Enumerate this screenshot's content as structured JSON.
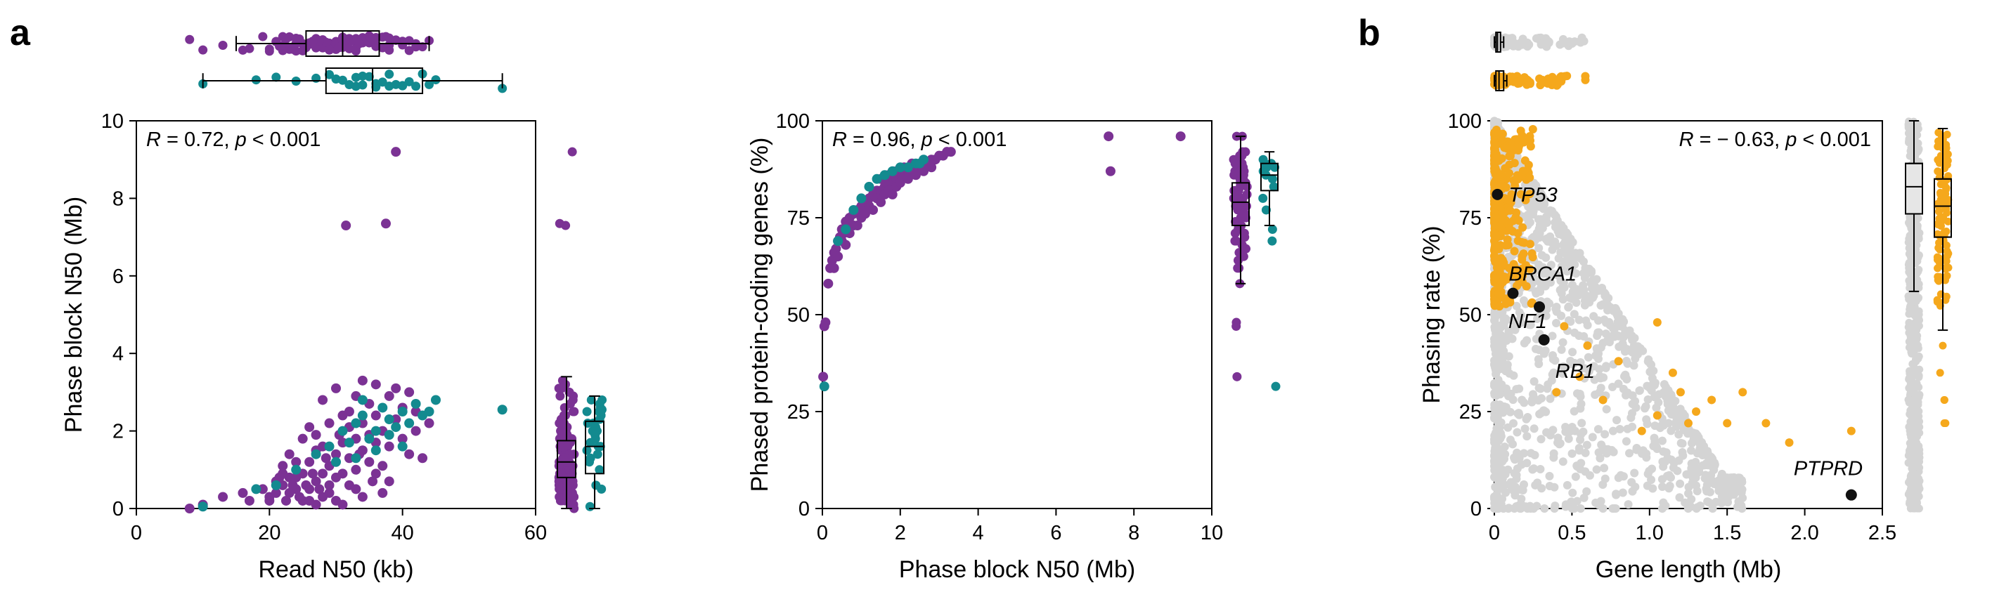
{
  "colors": {
    "purple": "#7b3294",
    "teal": "#138a8f",
    "orange": "#f5a81c",
    "gray": "#d4d4d4",
    "black": "#111111"
  },
  "panel_labels": [
    "a",
    "b"
  ],
  "chart_data": [
    {
      "id": "scatter1",
      "type": "scatter",
      "xlabel": "Read N50 (kb)",
      "ylabel": "Phase block N50 (Mb)",
      "xlim": [
        0,
        60
      ],
      "ylim": [
        0,
        10
      ],
      "xticks": [
        0,
        20,
        40,
        60
      ],
      "yticks": [
        0,
        2,
        4,
        6,
        8,
        10
      ],
      "annotation": {
        "r_label": "R",
        "r_value": " = 0.72, ",
        "p_label": "p",
        "p_value": " < 0.001"
      },
      "series": [
        {
          "color": "purple",
          "points": [
            [
              8,
              0
            ],
            [
              10,
              0.1
            ],
            [
              13,
              0.3
            ],
            [
              16,
              0.4
            ],
            [
              19,
              0.5
            ],
            [
              20,
              0.3
            ],
            [
              21,
              0.7
            ],
            [
              22,
              0.6
            ],
            [
              23,
              0.4
            ],
            [
              24,
              0.8
            ],
            [
              25,
              0.9
            ],
            [
              25,
              0.2
            ],
            [
              26,
              0.5
            ],
            [
              26,
              1.2
            ],
            [
              27,
              0.7
            ],
            [
              27,
              1.5
            ],
            [
              28,
              0.9
            ],
            [
              28,
              1.6
            ],
            [
              29,
              1.1
            ],
            [
              29,
              0.4
            ],
            [
              30,
              1.4
            ],
            [
              30,
              0.8
            ],
            [
              31,
              1.7
            ],
            [
              31,
              0.9
            ],
            [
              32,
              1.3
            ],
            [
              32,
              2.1
            ],
            [
              33,
              1.8
            ],
            [
              33,
              1.0
            ],
            [
              34,
              2.2
            ],
            [
              34,
              1.5
            ],
            [
              35,
              1.9
            ],
            [
              35,
              2.7
            ],
            [
              36,
              1.7
            ],
            [
              36,
              2.4
            ],
            [
              37,
              2.0
            ],
            [
              37,
              1.1
            ],
            [
              38,
              2.9
            ],
            [
              38,
              1.6
            ],
            [
              39,
              2.3
            ],
            [
              40,
              1.8
            ],
            [
              40,
              2.6
            ],
            [
              41,
              1.4
            ],
            [
              42,
              2.0
            ],
            [
              43,
              1.3
            ],
            [
              44,
              2.2
            ],
            [
              24,
              1.2
            ],
            [
              23,
              0.8
            ],
            [
              22,
              1.1
            ],
            [
              21,
              0.4
            ],
            [
              20,
              0.2
            ],
            [
              26,
              0.2
            ],
            [
              27,
              0.1
            ],
            [
              28,
              0.3
            ],
            [
              29,
              0.6
            ],
            [
              30,
              0.2
            ],
            [
              31,
              0.1
            ],
            [
              32,
              0.6
            ],
            [
              33,
              0.5
            ],
            [
              34,
              0.3
            ],
            [
              35,
              1.2
            ],
            [
              36,
              0.9
            ],
            [
              37,
              0.4
            ],
            [
              38,
              0.7
            ],
            [
              26,
              2.1
            ],
            [
              28,
              2.8
            ],
            [
              30,
              3.1
            ],
            [
              32,
              2.5
            ],
            [
              34,
              3.3
            ],
            [
              36,
              3.2
            ],
            [
              33,
              2.9
            ],
            [
              25,
              1.8
            ],
            [
              24,
              0.5
            ],
            [
              23,
              1.4
            ],
            [
              22,
              0.9
            ],
            [
              31,
              2.4
            ],
            [
              29,
              2.2
            ],
            [
              27,
              1.9
            ],
            [
              39,
              3.1
            ],
            [
              41,
              3.0
            ],
            [
              42,
              2.5
            ],
            [
              31.5,
              7.3
            ],
            [
              37.5,
              7.35
            ],
            [
              39,
              9.2
            ],
            [
              17,
              0.2
            ],
            [
              25.5,
              0.6
            ],
            [
              35.5,
              0.7
            ],
            [
              33.5,
              1.4
            ],
            [
              30.5,
              1.9
            ],
            [
              28.5,
              1.3
            ],
            [
              27.5,
              0.5
            ],
            [
              26.5,
              0.9
            ],
            [
              24.5,
              0.3
            ],
            [
              23.5,
              0.6
            ],
            [
              22.5,
              0.2
            ],
            [
              21.5,
              0.8
            ]
          ]
        },
        {
          "color": "teal",
          "points": [
            [
              10,
              0.05
            ],
            [
              18,
              0.5
            ],
            [
              21,
              0.6
            ],
            [
              24,
              1.0
            ],
            [
              27,
              1.4
            ],
            [
              29,
              1.6
            ],
            [
              30,
              1.2
            ],
            [
              31,
              2.0
            ],
            [
              32,
              1.7
            ],
            [
              33,
              2.2
            ],
            [
              34,
              2.4
            ],
            [
              35,
              1.8
            ],
            [
              36,
              2.0
            ],
            [
              37,
              2.6
            ],
            [
              38,
              2.3
            ],
            [
              39,
              2.1
            ],
            [
              40,
              2.5
            ],
            [
              41,
              2.2
            ],
            [
              42,
              2.7
            ],
            [
              43,
              2.4
            ],
            [
              44,
              2.5
            ],
            [
              45,
              2.8
            ],
            [
              55,
              2.55
            ],
            [
              36,
              1.5
            ],
            [
              34,
              2.8
            ],
            [
              33,
              1.3
            ],
            [
              38,
              1.9
            ],
            [
              40,
              1.6
            ]
          ]
        }
      ],
      "top_box": [
        {
          "color": "purple",
          "whisker": [
            15,
            44
          ],
          "box": [
            25.5,
            36.5
          ],
          "median": 31
        },
        {
          "color": "teal",
          "whisker": [
            10,
            55
          ],
          "box": [
            28.5,
            43
          ],
          "median": 35.5
        }
      ],
      "right_box": [
        {
          "color": "purple",
          "whisker": [
            0,
            3.4
          ],
          "box": [
            0.8,
            1.75
          ],
          "median": 1.2
        },
        {
          "color": "teal",
          "whisker": [
            0,
            2.9
          ],
          "box": [
            0.9,
            2.25
          ],
          "median": 1.6
        }
      ]
    },
    {
      "id": "scatter2",
      "type": "scatter",
      "xlabel": "Phase block N50 (Mb)",
      "ylabel": "Phased protein-coding genes (%)",
      "xlim": [
        0,
        10
      ],
      "ylim": [
        0,
        100
      ],
      "xticks": [
        0,
        2,
        4,
        6,
        8,
        10
      ],
      "yticks": [
        0,
        25,
        50,
        75,
        100
      ],
      "annotation": {
        "r_label": "R",
        "r_value": " = 0.96, ",
        "p_label": "p",
        "p_value": " < 0.001"
      },
      "series": [
        {
          "color": "purple",
          "points": [
            [
              0.02,
              34
            ],
            [
              0.05,
              47
            ],
            [
              0.08,
              48
            ],
            [
              0.15,
              58
            ],
            [
              0.2,
              62
            ],
            [
              0.25,
              64
            ],
            [
              0.3,
              66
            ],
            [
              0.35,
              67
            ],
            [
              0.4,
              69
            ],
            [
              0.45,
              70
            ],
            [
              0.5,
              72
            ],
            [
              0.55,
              71
            ],
            [
              0.6,
              74
            ],
            [
              0.7,
              75
            ],
            [
              0.8,
              76
            ],
            [
              0.9,
              77
            ],
            [
              1.0,
              78
            ],
            [
              1.1,
              79
            ],
            [
              1.2,
              80
            ],
            [
              1.3,
              81
            ],
            [
              1.4,
              82
            ],
            [
              1.5,
              82
            ],
            [
              1.6,
              83
            ],
            [
              1.7,
              84
            ],
            [
              1.8,
              84
            ],
            [
              1.9,
              85
            ],
            [
              2.0,
              86
            ],
            [
              2.1,
              86
            ],
            [
              2.2,
              87
            ],
            [
              2.3,
              87
            ],
            [
              2.4,
              88
            ],
            [
              2.5,
              88
            ],
            [
              2.6,
              89
            ],
            [
              2.7,
              89
            ],
            [
              2.8,
              90
            ],
            [
              2.9,
              90
            ],
            [
              3.0,
              91
            ],
            [
              3.1,
              91
            ],
            [
              3.2,
              92
            ],
            [
              3.3,
              92
            ],
            [
              0.6,
              68
            ],
            [
              0.7,
              71
            ],
            [
              0.9,
              73
            ],
            [
              1.0,
              75
            ],
            [
              1.1,
              76
            ],
            [
              1.2,
              78
            ],
            [
              1.3,
              77
            ],
            [
              1.4,
              80
            ],
            [
              1.5,
              79
            ],
            [
              1.6,
              81
            ],
            [
              1.7,
              82
            ],
            [
              1.8,
              81
            ],
            [
              1.9,
              83
            ],
            [
              2.0,
              84
            ],
            [
              2.2,
              85
            ],
            [
              2.4,
              86
            ],
            [
              2.6,
              87
            ],
            [
              2.8,
              88
            ],
            [
              1.5,
              85
            ],
            [
              1.7,
              86
            ],
            [
              1.9,
              87
            ],
            [
              2.1,
              88
            ],
            [
              2.3,
              89
            ],
            [
              0.4,
              65
            ],
            [
              0.3,
              62
            ],
            [
              0.5,
              69
            ],
            [
              0.8,
              73
            ],
            [
              7.35,
              96
            ],
            [
              7.4,
              87
            ],
            [
              9.2,
              96
            ]
          ]
        },
        {
          "color": "teal",
          "points": [
            [
              0.05,
              31.5
            ],
            [
              0.4,
              69
            ],
            [
              0.6,
              72
            ],
            [
              0.8,
              77
            ],
            [
              1.0,
              80
            ],
            [
              1.2,
              83
            ],
            [
              1.4,
              85
            ],
            [
              1.6,
              86
            ],
            [
              1.8,
              87
            ],
            [
              2.0,
              88
            ],
            [
              2.2,
              88
            ],
            [
              2.4,
              89
            ],
            [
              2.6,
              90
            ],
            [
              2.5,
              89
            ]
          ]
        }
      ],
      "right_box": [
        {
          "color": "purple",
          "whisker": [
            58,
            96
          ],
          "box": [
            73,
            84
          ],
          "median": 79
        },
        {
          "color": "teal",
          "whisker": [
            73,
            92
          ],
          "box": [
            82,
            89
          ],
          "median": 86
        }
      ]
    },
    {
      "id": "scatter3",
      "type": "scatter",
      "xlabel": "Gene length (Mb)",
      "ylabel": "Phasing rate (%)",
      "xlim": [
        0,
        2.5
      ],
      "ylim": [
        0,
        100
      ],
      "xticks": [
        0,
        0.5,
        1.0,
        1.5,
        2.0,
        2.5
      ],
      "xtick_labels": [
        "0",
        "0.5",
        "1.0",
        "1.5",
        "2.0",
        "2.5"
      ],
      "yticks": [
        0,
        25,
        50,
        75,
        100
      ],
      "annotation": {
        "r_label": "R",
        "r_value": " = − 0.63, ",
        "p_label": "p",
        "p_value": " < 0.001"
      },
      "highlighted_genes": [
        {
          "name": "TP53",
          "x": 0.02,
          "y": 81,
          "label_dx": 16,
          "label_dy": 10
        },
        {
          "name": "BRCA1",
          "x": 0.12,
          "y": 55.5,
          "label_dx": -6,
          "label_dy": -18
        },
        {
          "name": "NF1",
          "x": 0.29,
          "y": 52,
          "label_dx": -44,
          "label_dy": 30
        },
        {
          "name": "RB1",
          "x": 0.32,
          "y": 43.5,
          "label_dx": 16,
          "label_dy": 54
        },
        {
          "name": "PTPRD",
          "x": 2.3,
          "y": 3.5,
          "label_dx": -82,
          "label_dy": -28
        }
      ],
      "right_box": [
        {
          "color": "gray",
          "whisker": [
            56,
            100
          ],
          "box": [
            76,
            89
          ],
          "median": 83
        },
        {
          "color": "orange",
          "whisker": [
            46,
            98
          ],
          "box": [
            70,
            85
          ],
          "median": 78
        }
      ],
      "top_box": [
        {
          "color": "gray",
          "whisker": [
            0.0,
            0.06
          ],
          "box": [
            0.01,
            0.04
          ],
          "median": 0.02
        },
        {
          "color": "orange",
          "whisker": [
            0.0,
            0.08
          ],
          "box": [
            0.01,
            0.06
          ],
          "median": 0.03
        }
      ]
    }
  ]
}
